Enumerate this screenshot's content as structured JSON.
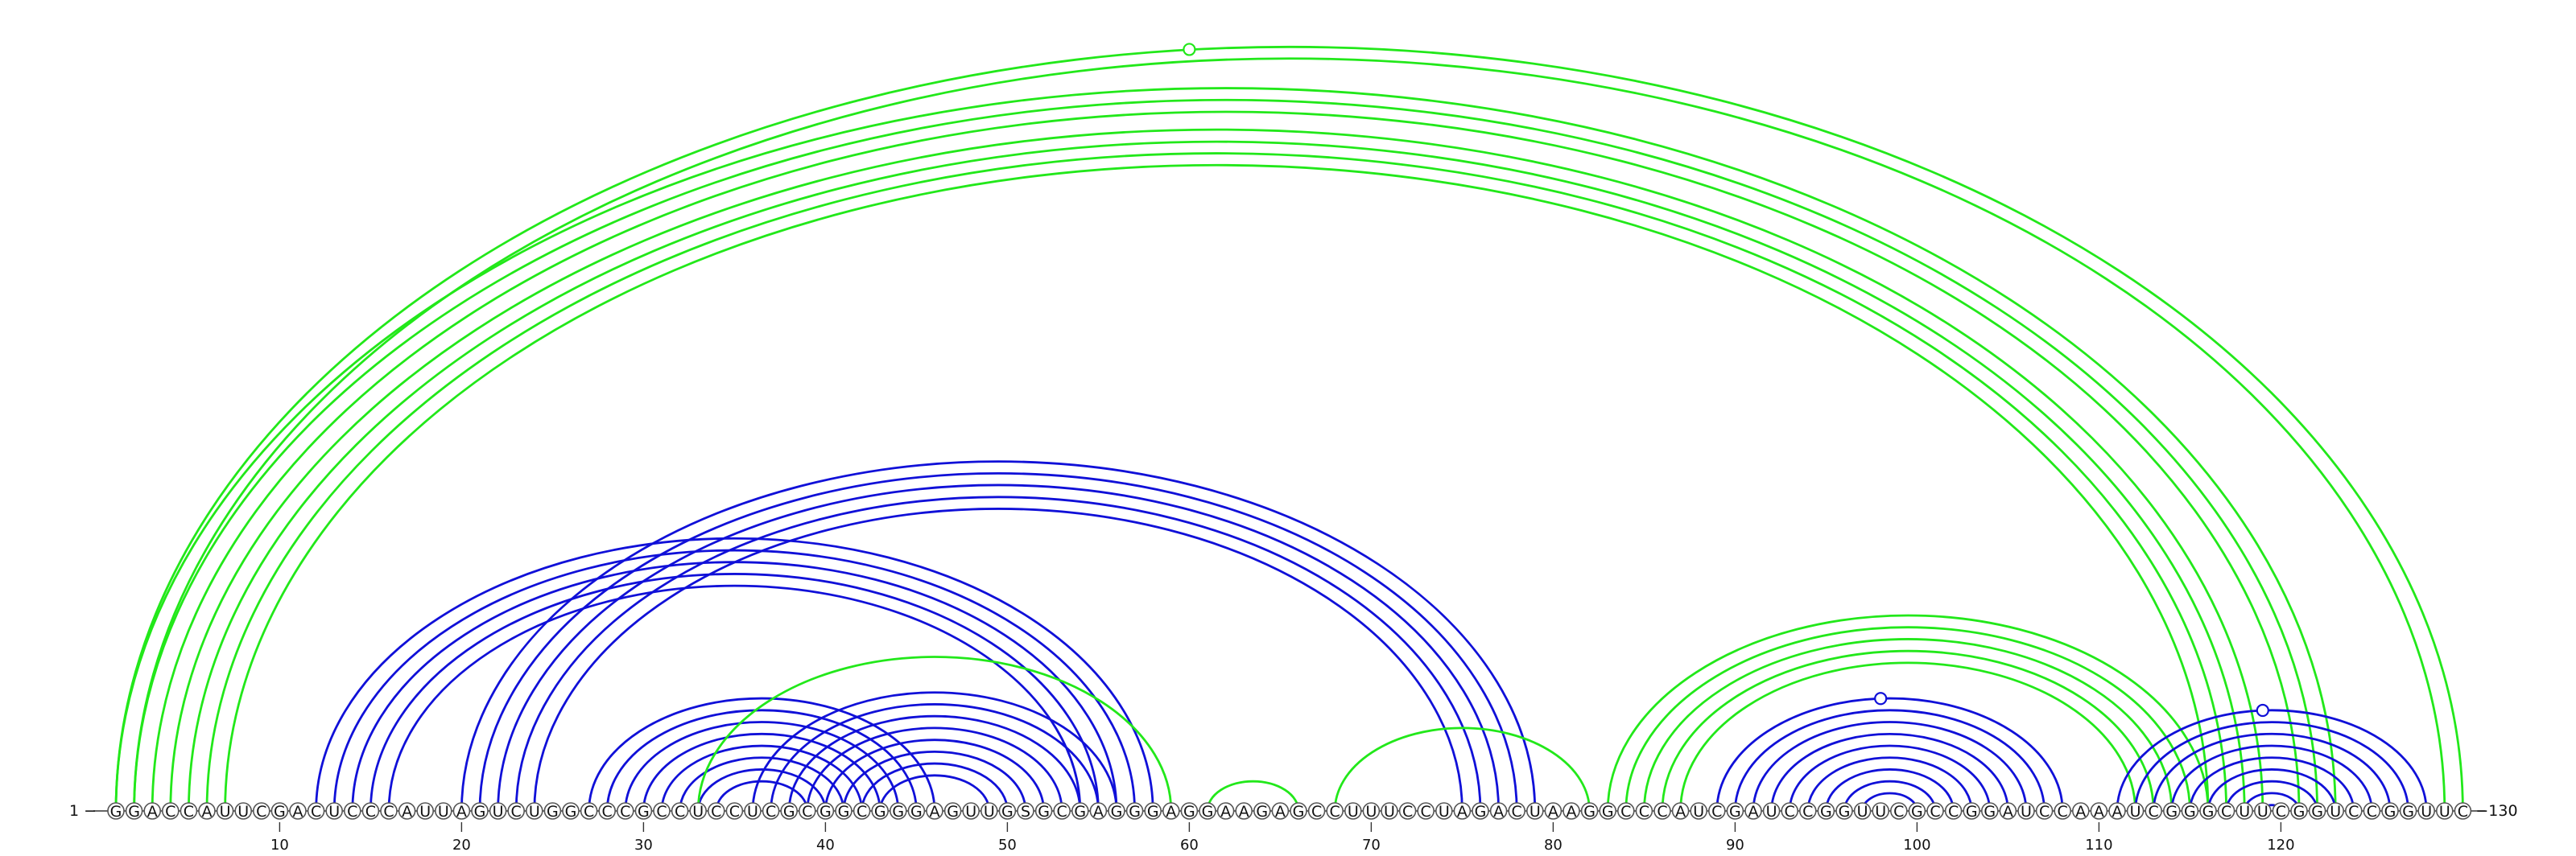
{
  "diagram": {
    "type": "rna-arc-diagram",
    "sequence": "GGACCAUUCGACUCCCAUUAGUCUGGCCCGCCUCCUCGCGGCGGGAGUUGSGCGAGGGAGGAAGAGCCUUUCCUAGACUAAGGCCCAUCGAUCCGGUUCGCCGGAUCCAAAUCGGGCUUCGGUCCGGUUC",
    "start_label": "1 −",
    "end_label": "−130",
    "ticks": [
      10,
      20,
      30,
      40,
      50,
      60,
      70,
      80,
      90,
      100,
      110,
      120
    ],
    "colors": {
      "green": "#22e81a",
      "blue": "#1010d8",
      "marker_fill": "#ffffff"
    },
    "helices": [
      {
        "color": "green",
        "i": 1,
        "j": 123,
        "n": 3
      },
      {
        "color": "green",
        "i": 4,
        "j": 119,
        "n": 4
      },
      {
        "color": "green",
        "i": 1,
        "j": 130,
        "n": 2,
        "marker": 60
      },
      {
        "color": "blue",
        "i": 12,
        "j": 58,
        "n": 5
      },
      {
        "color": "blue",
        "i": 20,
        "j": 79,
        "n": 5
      },
      {
        "color": "blue",
        "i": 27,
        "j": 46,
        "n": 8
      },
      {
        "color": "blue",
        "i": 36,
        "j": 56,
        "n": 8
      },
      {
        "color": "green",
        "i": 33,
        "j": 59,
        "n": 1
      },
      {
        "color": "green",
        "i": 61,
        "j": 66,
        "n": 1
      },
      {
        "color": "green",
        "i": 68,
        "j": 82,
        "n": 1
      },
      {
        "color": "green",
        "i": 83,
        "j": 116,
        "n": 5
      },
      {
        "color": "blue",
        "i": 89,
        "j": 108,
        "n": 9,
        "marker": 98
      },
      {
        "color": "blue",
        "i": 111,
        "j": 128,
        "n": 9,
        "marker": 119
      }
    ]
  }
}
